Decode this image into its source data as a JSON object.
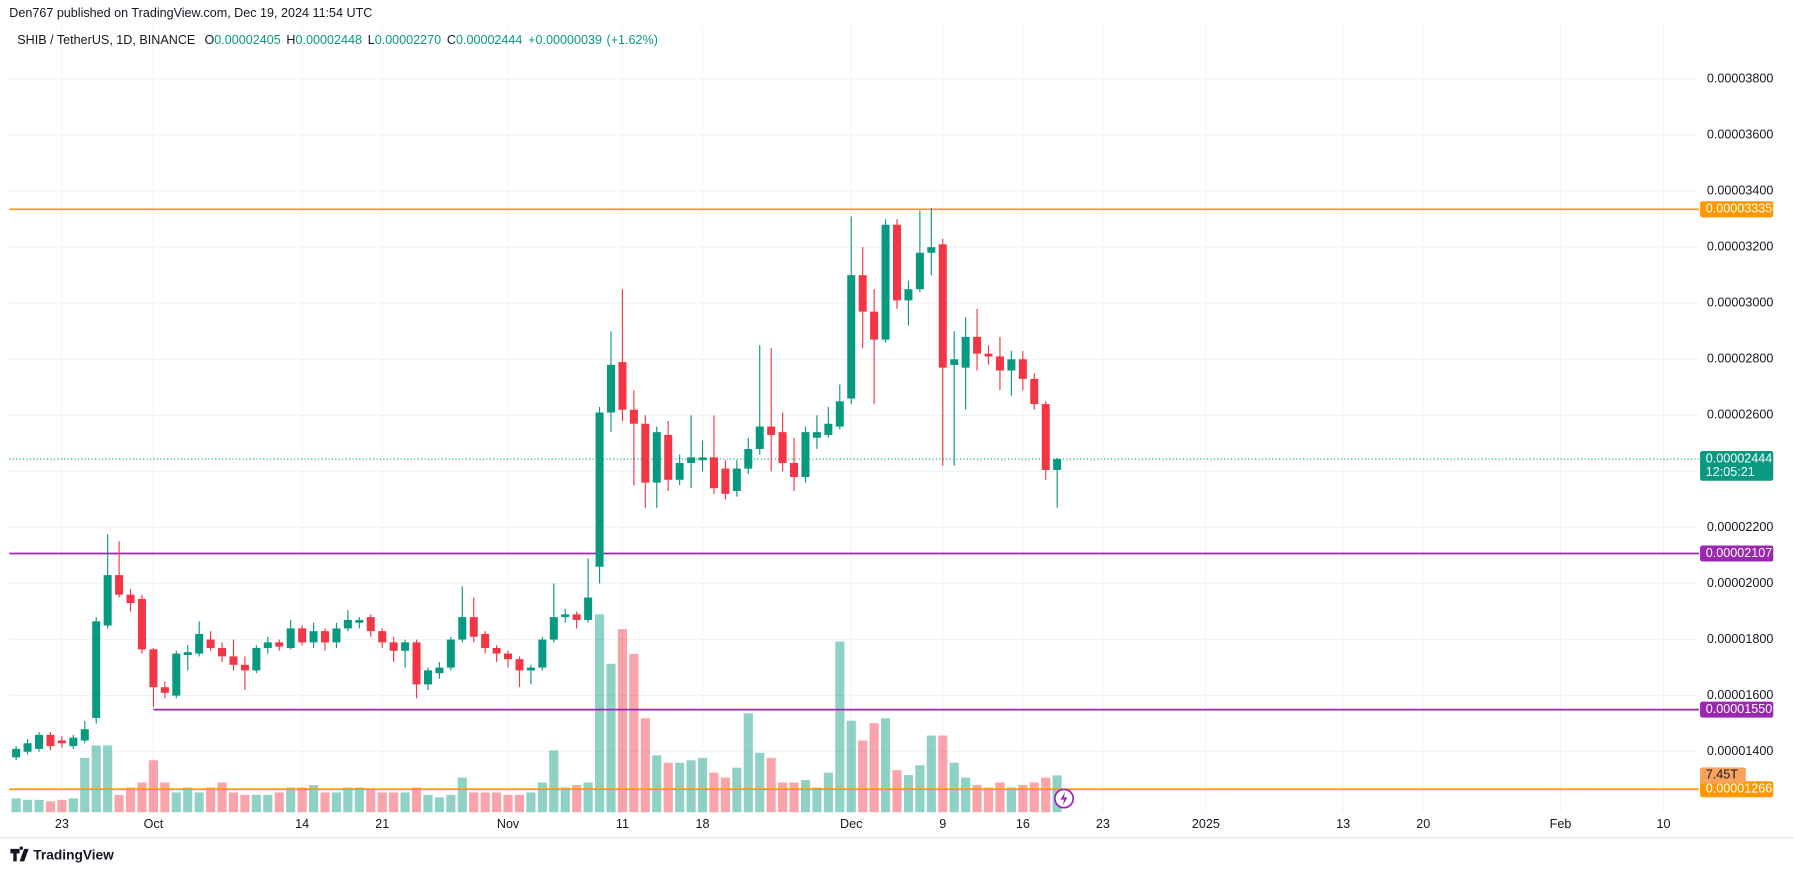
{
  "header": "Den767 published on TradingView.com, Dec 19, 2024 11:54 UTC",
  "footer": "TradingView",
  "chart_data": {
    "type": "candlestick",
    "title": "SHIB / TetherUS, 1D, BINANCE",
    "ohlc_legend": [
      {
        "key": "O",
        "value": 2.405e-05,
        "label": "0.00002405"
      },
      {
        "key": "H",
        "value": 2.448e-05,
        "label": "0.00002448"
      },
      {
        "key": "L",
        "value": 2.27e-05,
        "label": "0.00002270"
      },
      {
        "key": "C",
        "value": 2.444e-05,
        "label": "0.00002444"
      }
    ],
    "change": {
      "value": 3.9e-07,
      "label": "+0.00000039"
    },
    "change_pct": {
      "value": 1.62,
      "label": "(+1.62%)"
    },
    "open": [
      1.38e-05,
      1.4e-05,
      1.41e-05,
      1.46e-05,
      1.44e-05,
      1.42e-05,
      1.44e-05,
      1.52e-05,
      1.85e-05,
      2.03e-05,
      1.96e-05,
      1.945e-05,
      1.765e-05,
      1.63e-05,
      1.6e-05,
      1.745e-05,
      1.75e-05,
      1.8e-05,
      1.77e-05,
      1.74e-05,
      1.71e-05,
      1.69e-05,
      1.77e-05,
      1.79e-05,
      1.77e-05,
      1.84e-05,
      1.79e-05,
      1.83e-05,
      1.79e-05,
      1.84e-05,
      1.86e-05,
      1.88e-05,
      1.83e-05,
      1.79e-05,
      1.76e-05,
      1.79e-05,
      1.64e-05,
      1.68e-05,
      1.7e-05,
      1.8e-05,
      1.88e-05,
      1.82e-05,
      1.77e-05,
      1.75e-05,
      1.73e-05,
      1.69e-05,
      1.7e-05,
      1.8e-05,
      1.88e-05,
      1.89e-05,
      1.87e-05,
      2.06e-05,
      2.61e-05,
      2.79e-05,
      2.62e-05,
      2.57e-05,
      2.36e-05,
      2.53e-05,
      2.37e-05,
      2.43e-05,
      2.44e-05,
      2.45e-05,
      2.41e-05,
      2.33e-05,
      2.41e-05,
      2.48e-05,
      2.56e-05,
      2.54e-05,
      2.43e-05,
      2.38e-05,
      2.52e-05,
      2.53e-05,
      2.56e-05,
      2.66e-05,
      3.1e-05,
      2.97e-05,
      2.87e-05,
      3.28e-05,
      3.01e-05,
      3.05e-05,
      3.18e-05,
      3.21e-05,
      2.78e-05,
      2.77e-05,
      2.88e-05,
      2.82e-05,
      2.81e-05,
      2.76e-05,
      2.8e-05,
      2.73e-05,
      2.64e-05,
      2.405e-05
    ],
    "high": [
      1.42e-05,
      1.445e-05,
      1.47e-05,
      1.47e-05,
      1.455e-05,
      1.46e-05,
      1.51e-05,
      1.88e-05,
      2.176e-05,
      2.151e-05,
      1.98e-05,
      1.96e-05,
      1.77e-05,
      1.65e-05,
      1.76e-05,
      1.78e-05,
      1.865e-05,
      1.83e-05,
      1.79e-05,
      1.8e-05,
      1.74e-05,
      1.78e-05,
      1.81e-05,
      1.8e-05,
      1.87e-05,
      1.85e-05,
      1.86e-05,
      1.84e-05,
      1.86e-05,
      1.905e-05,
      1.88e-05,
      1.89e-05,
      1.84e-05,
      1.81e-05,
      1.8e-05,
      1.8e-05,
      1.7e-05,
      1.72e-05,
      1.81e-05,
      1.99e-05,
      1.95e-05,
      1.83e-05,
      1.78e-05,
      1.76e-05,
      1.74e-05,
      1.71e-05,
      1.81e-05,
      2e-05,
      1.91e-05,
      1.9e-05,
      2.09e-05,
      2.63e-05,
      2.9e-05,
      3.05e-05,
      2.69e-05,
      2.6e-05,
      2.56e-05,
      2.58e-05,
      2.46e-05,
      2.6e-05,
      2.51e-05,
      2.6e-05,
      2.44e-05,
      2.44e-05,
      2.52e-05,
      2.85e-05,
      2.84e-05,
      2.61e-05,
      2.52e-05,
      2.56e-05,
      2.6e-05,
      2.63e-05,
      2.71e-05,
      3.31e-05,
      3.2e-05,
      3.05e-05,
      3.3e-05,
      3.3e-05,
      3.08e-05,
      3.33e-05,
      3.34e-05,
      3.23e-05,
      2.9e-05,
      2.95e-05,
      2.98e-05,
      2.85e-05,
      2.88e-05,
      2.83e-05,
      2.83e-05,
      2.75e-05,
      2.65e-05,
      2.448e-05
    ],
    "low": [
      1.37e-05,
      1.39e-05,
      1.4e-05,
      1.405e-05,
      1.415e-05,
      1.41e-05,
      1.43e-05,
      1.5e-05,
      1.84e-05,
      1.95e-05,
      1.9e-05,
      1.75e-05,
      1.56e-05,
      1.59e-05,
      1.59e-05,
      1.69e-05,
      1.74e-05,
      1.76e-05,
      1.72e-05,
      1.69e-05,
      1.62e-05,
      1.68e-05,
      1.75e-05,
      1.76e-05,
      1.765e-05,
      1.78e-05,
      1.77e-05,
      1.76e-05,
      1.77e-05,
      1.83e-05,
      1.84e-05,
      1.81e-05,
      1.77e-05,
      1.72e-05,
      1.7e-05,
      1.59e-05,
      1.62e-05,
      1.66e-05,
      1.69e-05,
      1.79e-05,
      1.79e-05,
      1.75e-05,
      1.72e-05,
      1.7e-05,
      1.63e-05,
      1.64e-05,
      1.69e-05,
      1.79e-05,
      1.86e-05,
      1.84e-05,
      1.86e-05,
      2e-05,
      2.54e-05,
      2.58e-05,
      2.35e-05,
      2.27e-05,
      2.27e-05,
      2.33e-05,
      2.35e-05,
      2.34e-05,
      2.4e-05,
      2.32e-05,
      2.3e-05,
      2.31e-05,
      2.39e-05,
      2.46e-05,
      2.4e-05,
      2.4e-05,
      2.33e-05,
      2.36e-05,
      2.48e-05,
      2.52e-05,
      2.55e-05,
      2.64e-05,
      2.84e-05,
      2.64e-05,
      2.86e-05,
      2.98e-05,
      2.92e-05,
      3.04e-05,
      3.1e-05,
      2.42e-05,
      2.42e-05,
      2.62e-05,
      2.76e-05,
      2.78e-05,
      2.69e-05,
      2.67e-05,
      2.69e-05,
      2.62e-05,
      2.37e-05,
      2.27e-05
    ],
    "close": [
      1.41e-05,
      1.43e-05,
      1.46e-05,
      1.42e-05,
      1.43e-05,
      1.45e-05,
      1.48e-05,
      1.865e-05,
      2.03e-05,
      1.96e-05,
      1.93e-05,
      1.765e-05,
      1.63e-05,
      1.61e-05,
      1.75e-05,
      1.755e-05,
      1.82e-05,
      1.77e-05,
      1.74e-05,
      1.71e-05,
      1.69e-05,
      1.77e-05,
      1.79e-05,
      1.775e-05,
      1.84e-05,
      1.79e-05,
      1.83e-05,
      1.79e-05,
      1.84e-05,
      1.87e-05,
      1.87e-05,
      1.83e-05,
      1.79e-05,
      1.76e-05,
      1.79e-05,
      1.64e-05,
      1.69e-05,
      1.7e-05,
      1.8e-05,
      1.88e-05,
      1.81e-05,
      1.77e-05,
      1.75e-05,
      1.73e-05,
      1.69e-05,
      1.7e-05,
      1.8e-05,
      1.88e-05,
      1.89e-05,
      1.87e-05,
      1.95e-05,
      2.61e-05,
      2.78e-05,
      2.62e-05,
      2.57e-05,
      2.36e-05,
      2.54e-05,
      2.37e-05,
      2.43e-05,
      2.45e-05,
      2.45e-05,
      2.34e-05,
      2.32e-05,
      2.41e-05,
      2.48e-05,
      2.56e-05,
      2.53e-05,
      2.43e-05,
      2.38e-05,
      2.54e-05,
      2.54e-05,
      2.57e-05,
      2.65e-05,
      3.1e-05,
      2.97e-05,
      2.87e-05,
      3.28e-05,
      3.01e-05,
      3.05e-05,
      3.18e-05,
      3.2e-05,
      2.77e-05,
      2.8e-05,
      2.88e-05,
      2.82e-05,
      2.81e-05,
      2.76e-05,
      2.8e-05,
      2.73e-05,
      2.64e-05,
      2.405e-05,
      2.444e-05
    ],
    "volume": [
      2.8,
      2.5,
      2.5,
      2.2,
      2.5,
      2.8,
      11,
      13.5,
      13.5,
      3.5,
      5,
      6,
      10.5,
      6,
      4,
      5,
      4,
      5,
      6,
      4,
      3.5,
      3.5,
      3.5,
      4,
      5,
      5,
      5.5,
      4,
      4,
      5,
      5,
      4.5,
      4,
      4,
      4,
      5,
      3.5,
      3,
      3.5,
      7,
      4,
      4,
      4,
      3.5,
      3.5,
      4,
      6,
      12.5,
      5,
      5.5,
      6,
      40,
      30,
      37,
      32,
      19,
      11.5,
      10,
      10,
      10.5,
      11,
      8,
      7,
      9,
      20,
      12,
      11,
      6,
      6,
      6.5,
      5,
      8,
      34.5,
      18.5,
      14.5,
      18,
      19,
      8.5,
      7.5,
      9.5,
      15.5,
      15.5,
      10,
      7,
      5.5,
      5,
      6,
      5,
      5.5,
      6,
      7,
      7.45
    ],
    "volume_label": {
      "value": 7.45,
      "label": "7.45T"
    },
    "up_color": "#089981",
    "down_color": "#f23645",
    "xlim": [
      -0.6,
      147.1
    ],
    "xticks": [
      {
        "value": 4,
        "label": "23"
      },
      {
        "value": 12,
        "label": "Oct"
      },
      {
        "value": 25,
        "label": "14"
      },
      {
        "value": 32,
        "label": "21"
      },
      {
        "value": 43,
        "label": "Nov"
      },
      {
        "value": 53,
        "label": "11"
      },
      {
        "value": 60,
        "label": "18"
      },
      {
        "value": 73,
        "label": "Dec"
      },
      {
        "value": 81,
        "label": "9"
      },
      {
        "value": 88,
        "label": "16"
      },
      {
        "value": 95,
        "label": "23"
      },
      {
        "value": 104,
        "label": "2025"
      },
      {
        "value": 116,
        "label": "13"
      },
      {
        "value": 123,
        "label": "20"
      },
      {
        "value": 135,
        "label": "Feb"
      },
      {
        "value": 144,
        "label": "10"
      }
    ],
    "ylim": [
      1.184e-05,
      3.992e-05
    ],
    "yticks": [
      {
        "value": 1.4e-05,
        "label": "0.00001400"
      },
      {
        "value": 1.6e-05,
        "label": "0.00001600"
      },
      {
        "value": 1.8e-05,
        "label": "0.00001800"
      },
      {
        "value": 2e-05,
        "label": "0.00002000"
      },
      {
        "value": 2.2e-05,
        "label": "0.00002200"
      },
      {
        "value": 2.4e-05,
        "label": "0.00002400"
      },
      {
        "value": 2.6e-05,
        "label": "0.00002600"
      },
      {
        "value": 2.8e-05,
        "label": "0.00002800"
      },
      {
        "value": 3e-05,
        "label": "0.00003000"
      },
      {
        "value": 3.2e-05,
        "label": "0.00003200"
      },
      {
        "value": 3.4e-05,
        "label": "0.00003400"
      },
      {
        "value": 3.6e-05,
        "label": "0.00003600"
      },
      {
        "value": 3.8e-05,
        "label": "0.00003800"
      }
    ],
    "grid": true,
    "levels": [
      {
        "value": 3.335e-05,
        "label": "0.00003335",
        "color": "#ff9800"
      },
      {
        "value": 2.107e-05,
        "label": "0.00002107",
        "color": "#9c27b0"
      },
      {
        "value": 1.55e-05,
        "label": "0.00001550",
        "color": "#9c27b0",
        "start": 12
      },
      {
        "value": 1.266e-05,
        "label": "0.00001266",
        "color": "#ff9800"
      }
    ],
    "last_price": {
      "value": 2.444e-05,
      "label": "0.00002444",
      "countdown": "12:05:21",
      "color": "#089981"
    }
  }
}
